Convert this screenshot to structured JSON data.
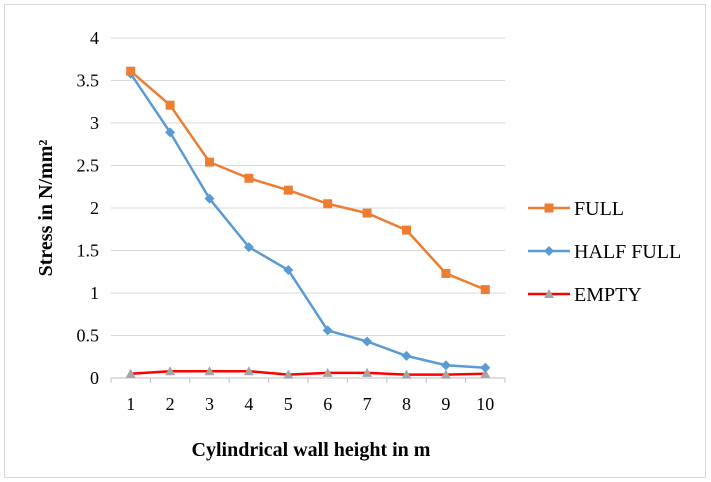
{
  "chart_data": {
    "type": "line",
    "xlabel": "Cylindrical wall height in m",
    "ylabel": "Stress in N/mm²",
    "x": [
      1,
      2,
      3,
      4,
      5,
      6,
      7,
      8,
      9,
      10
    ],
    "xlim": [
      1,
      10
    ],
    "ylim": [
      0,
      4
    ],
    "yticks": [
      0,
      0.5,
      1,
      1.5,
      2,
      2.5,
      3,
      3.5,
      4
    ],
    "ytick_labels": [
      "0",
      "0.5",
      "1",
      "1.5",
      "2",
      "2.5",
      "3",
      "3.5",
      "4"
    ],
    "xtick_labels": [
      "1",
      "2",
      "3",
      "4",
      "5",
      "6",
      "7",
      "8",
      "9",
      "10"
    ],
    "grid": "horizontal",
    "legend_position": "right",
    "series": [
      {
        "name": "FULL",
        "color": "#ed7d31",
        "marker": "square",
        "values": [
          3.61,
          3.21,
          2.54,
          2.35,
          2.21,
          2.05,
          1.94,
          1.74,
          1.23,
          1.04
        ]
      },
      {
        "name": "HALF FULL",
        "color": "#5b9bd5",
        "marker": "diamond",
        "values": [
          3.58,
          2.89,
          2.11,
          1.54,
          1.27,
          0.56,
          0.43,
          0.26,
          0.15,
          0.12
        ]
      },
      {
        "name": "EMPTY",
        "color": "#ff0000",
        "marker_color": "#a5a5a5",
        "marker": "triangle",
        "values": [
          0.05,
          0.08,
          0.08,
          0.08,
          0.04,
          0.06,
          0.06,
          0.04,
          0.04,
          0.05
        ]
      }
    ]
  }
}
